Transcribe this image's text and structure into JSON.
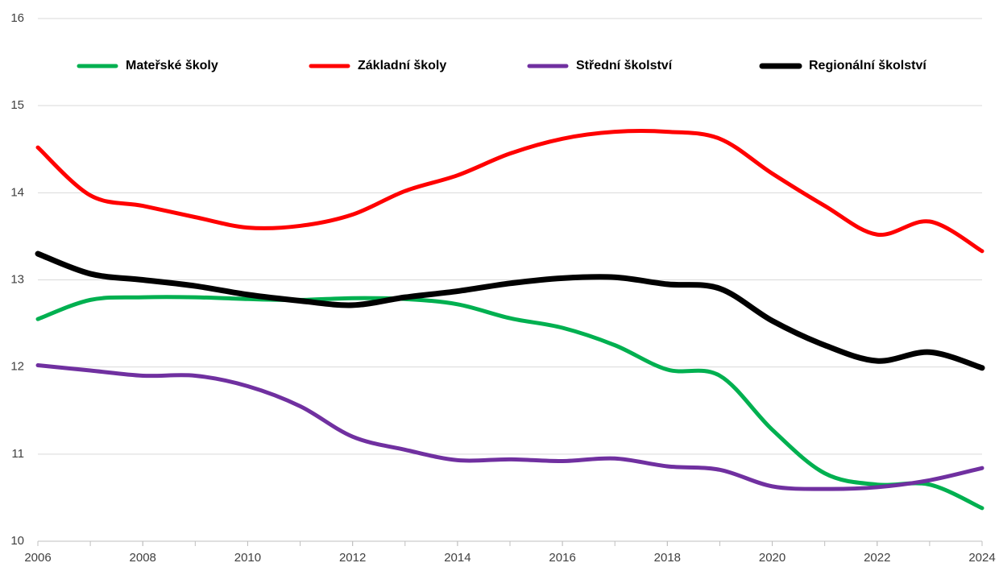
{
  "chart_data": {
    "type": "line",
    "x": [
      2006,
      2007,
      2008,
      2009,
      2010,
      2011,
      2012,
      2013,
      2014,
      2015,
      2016,
      2017,
      2018,
      2019,
      2020,
      2021,
      2022,
      2023,
      2024
    ],
    "series": [
      {
        "name": "Mateřské školy",
        "color": "#00b050",
        "values": [
          12.55,
          12.77,
          12.8,
          12.8,
          12.78,
          12.77,
          12.79,
          12.78,
          12.72,
          12.56,
          12.45,
          12.25,
          11.97,
          11.9,
          11.28,
          10.78,
          10.65,
          10.65,
          10.38
        ]
      },
      {
        "name": "Základní školy",
        "color": "#ff0000",
        "values": [
          14.52,
          13.97,
          13.85,
          13.72,
          13.6,
          13.62,
          13.75,
          14.02,
          14.2,
          14.45,
          14.62,
          14.7,
          14.7,
          14.62,
          14.22,
          13.85,
          13.52,
          13.67,
          13.33
        ]
      },
      {
        "name": "Střední školství",
        "color": "#7030a0",
        "values": [
          12.02,
          11.96,
          11.9,
          11.9,
          11.78,
          11.55,
          11.2,
          11.05,
          10.93,
          10.94,
          10.92,
          10.95,
          10.86,
          10.82,
          10.63,
          10.6,
          10.62,
          10.7,
          10.84
        ]
      },
      {
        "name": "Regionální školství",
        "color": "#000000",
        "values": [
          13.3,
          13.07,
          13.0,
          12.93,
          12.83,
          12.76,
          12.71,
          12.8,
          12.87,
          12.96,
          13.02,
          13.03,
          12.95,
          12.9,
          12.53,
          12.25,
          12.07,
          12.17,
          11.99
        ]
      }
    ],
    "xlim": [
      2006,
      2024
    ],
    "xticks": [
      2006,
      2008,
      2010,
      2012,
      2014,
      2016,
      2018,
      2020,
      2022,
      2024
    ],
    "ylim": [
      10,
      16
    ],
    "yticks": [
      10,
      11,
      12,
      13,
      14,
      15,
      16
    ],
    "grid": true,
    "legend": "top"
  }
}
